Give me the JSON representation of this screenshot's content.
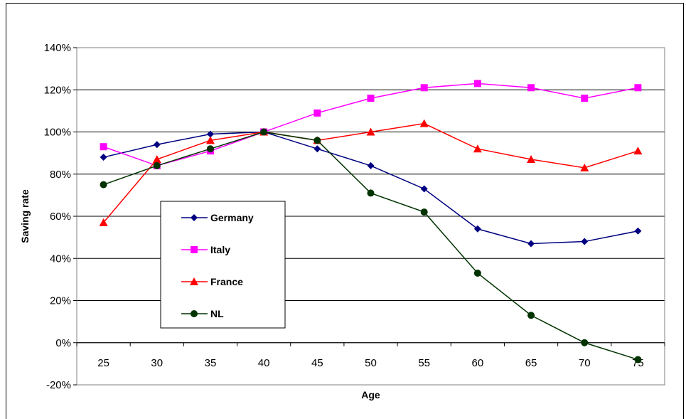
{
  "chart_data": {
    "type": "line",
    "title": "",
    "xlabel": "Age",
    "ylabel": "Saving rate",
    "categories": [
      "25",
      "30",
      "35",
      "40",
      "45",
      "50",
      "55",
      "60",
      "65",
      "70",
      "75"
    ],
    "ylim": [
      -20,
      140
    ],
    "y_ticks": [
      "-20%",
      "0%",
      "20%",
      "40%",
      "60%",
      "80%",
      "100%",
      "120%",
      "140%"
    ],
    "y_tick_values": [
      -20,
      0,
      20,
      40,
      60,
      80,
      100,
      120,
      140
    ],
    "grid": "horizontal",
    "legend_position": "center-left",
    "series": [
      {
        "name": "Germany",
        "color": "#000080",
        "marker": "diamond",
        "values": [
          88,
          94,
          99,
          100,
          92,
          84,
          73,
          54,
          47,
          48,
          53
        ]
      },
      {
        "name": "Italy",
        "color": "#ff00ff",
        "marker": "square",
        "values": [
          93,
          84,
          91,
          100,
          109,
          116,
          121,
          123,
          121,
          116,
          121
        ]
      },
      {
        "name": "France",
        "color": "#ff0000",
        "marker": "triangle",
        "values": [
          57,
          87,
          96,
          100,
          96,
          100,
          104,
          92,
          87,
          83,
          91
        ]
      },
      {
        "name": "NL",
        "color": "#003300",
        "marker": "circle",
        "values": [
          75,
          84,
          92,
          100,
          96,
          71,
          62,
          33,
          13,
          0,
          -8
        ]
      }
    ]
  }
}
